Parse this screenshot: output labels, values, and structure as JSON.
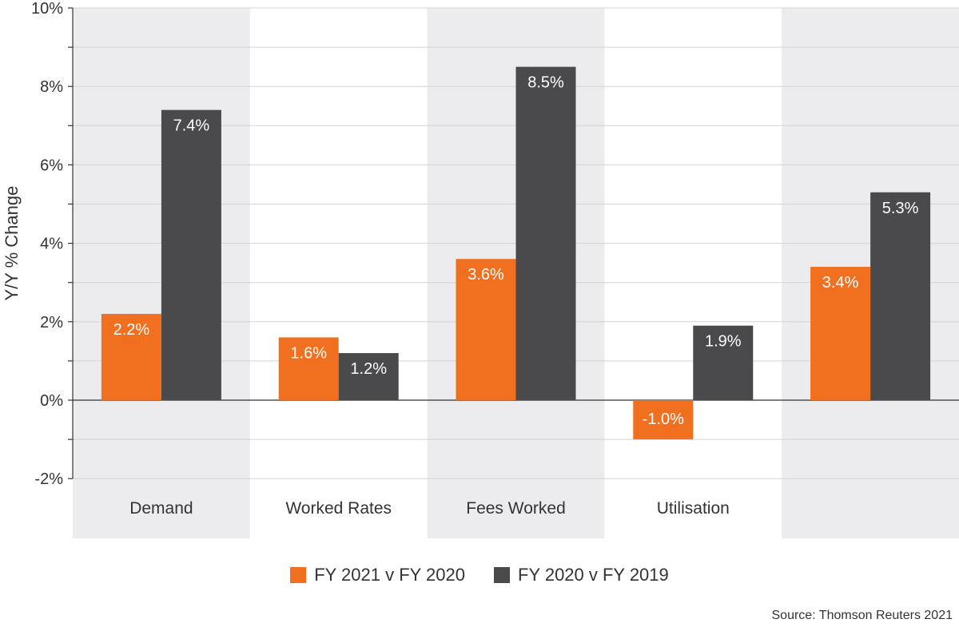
{
  "chart_data": {
    "type": "bar",
    "categories": [
      "Demand",
      "Worked Rates",
      "Fees Worked",
      "Utilisation",
      ""
    ],
    "series": [
      {
        "name": "FY 2021 v FY 2020",
        "values": [
          2.2,
          1.6,
          3.6,
          -1.0,
          3.4
        ],
        "labels": [
          "2.2%",
          "1.6%",
          "3.6%",
          "-1.0%",
          "3.4%"
        ],
        "color": "#f07020"
      },
      {
        "name": "FY 2020 v FY 2019",
        "values": [
          7.4,
          1.2,
          8.5,
          1.9,
          5.3
        ],
        "labels": [
          "7.4%",
          "1.2%",
          "8.5%",
          "1.9%",
          "5.3%"
        ],
        "color": "#4a4a4c"
      }
    ],
    "ylabel": "Y/Y % Change",
    "ylim": [
      -2,
      10
    ],
    "yticks": [
      -2,
      0,
      2,
      4,
      6,
      8,
      10
    ],
    "ytick_labels": [
      "-2%",
      "0%",
      "2%",
      "4%",
      "6%",
      "8%",
      "10%"
    ],
    "grid": true,
    "legend_position": "bottom",
    "band_color": "#ececee"
  },
  "source": "Source: Thomson Reuters 2021"
}
